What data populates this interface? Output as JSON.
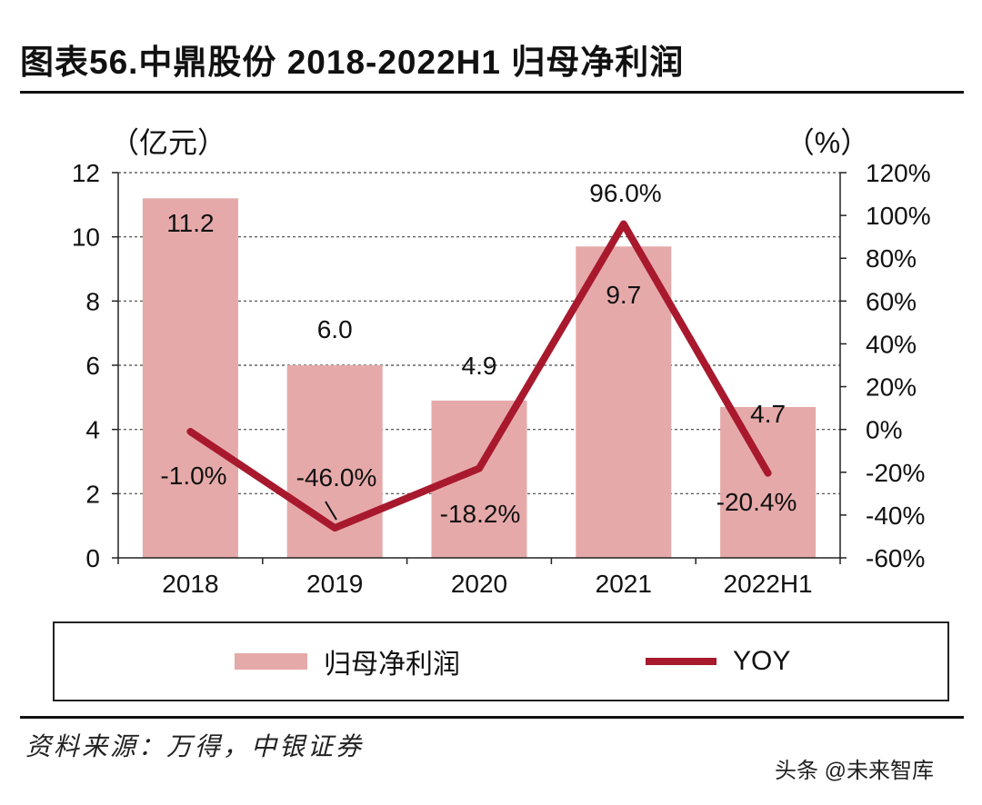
{
  "header": {
    "title": "图表56.中鼎股份 2018-2022H1 归母净利润"
  },
  "chart_data": {
    "type": "bar+line",
    "categories": [
      "2018",
      "2019",
      "2020",
      "2021",
      "2022H1"
    ],
    "series": [
      {
        "name": "归母净利润",
        "type": "bar",
        "axis": "left",
        "color": "#e6a9a9",
        "values": [
          11.2,
          6.0,
          4.9,
          9.7,
          4.7
        ],
        "labels": [
          "11.2",
          "6.0",
          "4.9",
          "9.7",
          "4.7"
        ]
      },
      {
        "name": "YOY",
        "type": "line",
        "axis": "right",
        "color": "#a8192e",
        "values": [
          -1.0,
          -46.0,
          -18.2,
          96.0,
          -20.4
        ],
        "labels": [
          "-1.0%",
          "-46.0%",
          "-18.2%",
          "96.0%",
          "-20.4%"
        ]
      }
    ],
    "left_axis": {
      "unit_label": "（亿元）",
      "min": 0,
      "max": 12,
      "ticks": [
        "0",
        "2",
        "4",
        "6",
        "8",
        "10",
        "12"
      ]
    },
    "right_axis": {
      "unit_label": "（%）",
      "min": -60,
      "max": 120,
      "ticks": [
        "-60%",
        "-40%",
        "-20%",
        "0%",
        "20%",
        "40%",
        "60%",
        "80%",
        "100%",
        "120%"
      ]
    },
    "grid": "dashed horizontal"
  },
  "legend": {
    "bar_label": "归母净利润",
    "line_label": "YOY"
  },
  "footer": {
    "source": "资料来源：万得，中银证券",
    "watermark": "头条 @未来智库"
  }
}
